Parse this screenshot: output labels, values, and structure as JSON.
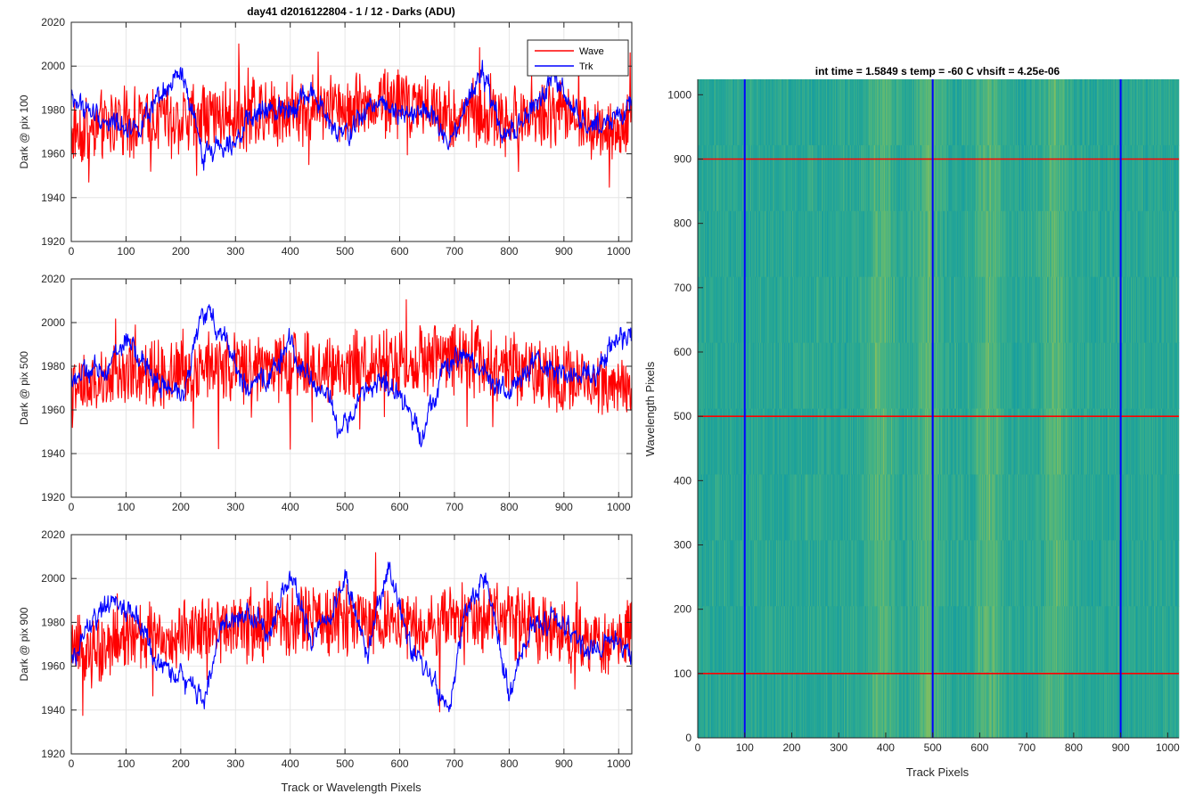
{
  "figure": {
    "suptitle": "day41 d2016122804 - 1 / 12 - Darks (ADU)",
    "shared_xlabel": "Track or Wavelength Pixels"
  },
  "legend": {
    "position": "top-right",
    "entries": [
      {
        "name": "Wave",
        "color": "#ff0000"
      },
      {
        "name": "Trk",
        "color": "#0000ff"
      }
    ]
  },
  "chart_data": [
    {
      "type": "line",
      "ylabel": "Dark @ pix 100",
      "xlabel": "",
      "xlim": [
        0,
        1024
      ],
      "ylim": [
        1920,
        2020
      ],
      "xticks": [
        0,
        100,
        200,
        300,
        400,
        500,
        600,
        700,
        800,
        900,
        1000
      ],
      "yticks": [
        1920,
        1940,
        1960,
        1980,
        2000,
        2020
      ],
      "grid": true,
      "series": [
        {
          "name": "Wave",
          "color": "#ff0000",
          "center": 1977,
          "x": [
            0,
            100,
            200,
            300,
            400,
            500,
            600,
            700,
            800,
            900,
            1000,
            1024
          ],
          "y": [
            1970,
            1975,
            1976,
            1978,
            1980,
            1982,
            1984,
            1978,
            1976,
            1978,
            1970,
            1975
          ]
        },
        {
          "name": "Trk",
          "color": "#0000ff",
          "x": [
            0,
            60,
            120,
            150,
            200,
            240,
            300,
            340,
            400,
            440,
            480,
            500,
            560,
            600,
            660,
            690,
            750,
            790,
            830,
            880,
            940,
            1024
          ],
          "y": [
            1985,
            1975,
            1972,
            1980,
            1997,
            1960,
            1968,
            1978,
            1982,
            1988,
            1970,
            1968,
            1985,
            1980,
            1978,
            1962,
            1998,
            1966,
            1976,
            1994,
            1972,
            1980
          ]
        }
      ]
    },
    {
      "type": "line",
      "ylabel": "Dark @ pix 500",
      "xlabel": "",
      "xlim": [
        0,
        1024
      ],
      "ylim": [
        1920,
        2020
      ],
      "xticks": [
        0,
        100,
        200,
        300,
        400,
        500,
        600,
        700,
        800,
        900,
        1000
      ],
      "yticks": [
        1920,
        1940,
        1960,
        1980,
        2000,
        2020
      ],
      "grid": true,
      "series": [
        {
          "name": "Wave",
          "color": "#ff0000",
          "x": [
            0,
            100,
            200,
            300,
            400,
            500,
            600,
            700,
            800,
            900,
            1000,
            1024
          ],
          "y": [
            1968,
            1975,
            1978,
            1980,
            1980,
            1980,
            1982,
            1985,
            1980,
            1975,
            1972,
            1972
          ]
        },
        {
          "name": "Trk",
          "color": "#0000ff",
          "x": [
            0,
            60,
            100,
            150,
            200,
            240,
            280,
            320,
            360,
            400,
            440,
            470,
            490,
            520,
            560,
            600,
            640,
            680,
            720,
            760,
            800,
            850,
            900,
            960,
            1000,
            1024
          ],
          "y": [
            1975,
            1978,
            1992,
            1975,
            1965,
            2005,
            1995,
            1968,
            1975,
            1990,
            1972,
            1968,
            1948,
            1962,
            1975,
            1965,
            1950,
            1978,
            1985,
            1975,
            1968,
            1982,
            1975,
            1978,
            1995,
            1990
          ]
        }
      ]
    },
    {
      "type": "line",
      "ylabel": "Dark @ pix 900",
      "xlabel": "Track or Wavelength Pixels",
      "xlim": [
        0,
        1024
      ],
      "ylim": [
        1920,
        2020
      ],
      "xticks": [
        0,
        100,
        200,
        300,
        400,
        500,
        600,
        700,
        800,
        900,
        1000
      ],
      "yticks": [
        1920,
        1940,
        1960,
        1980,
        2000,
        2020
      ],
      "grid": true,
      "series": [
        {
          "name": "Wave",
          "color": "#ff0000",
          "x": [
            0,
            100,
            200,
            300,
            400,
            500,
            600,
            700,
            800,
            900,
            1000,
            1024
          ],
          "y": [
            1965,
            1972,
            1975,
            1978,
            1980,
            1982,
            1980,
            1982,
            1980,
            1975,
            1970,
            1978
          ]
        },
        {
          "name": "Trk",
          "color": "#0000ff",
          "x": [
            0,
            30,
            80,
            120,
            160,
            200,
            240,
            280,
            320,
            360,
            400,
            440,
            480,
            500,
            540,
            580,
            620,
            660,
            690,
            720,
            760,
            800,
            840,
            880,
            940,
            1000,
            1024
          ],
          "y": [
            1960,
            1978,
            1990,
            1982,
            1960,
            1955,
            1945,
            1980,
            1985,
            1975,
            2002,
            1972,
            1988,
            2000,
            1965,
            2005,
            1968,
            1955,
            1938,
            1985,
            2000,
            1945,
            1978,
            1982,
            1968,
            1972,
            1965
          ]
        }
      ]
    },
    {
      "type": "heatmap",
      "title": "int time = 1.5849 s    temp = -60 C    vhsift = 4.25e-06",
      "xlabel": "Track Pixels",
      "ylabel": "Wavelength Pixels",
      "xlim": [
        0,
        1024
      ],
      "ylim": [
        0,
        1024
      ],
      "xticks": [
        0,
        100,
        200,
        300,
        400,
        500,
        600,
        700,
        800,
        900,
        1000
      ],
      "yticks": [
        0,
        100,
        200,
        300,
        400,
        500,
        600,
        700,
        800,
        900,
        1000
      ],
      "colormap": "parula",
      "colors": {
        "low": "#1a9ea0",
        "mid": "#3fb38f",
        "high": "#a8c25a"
      },
      "bright_bands_x": [
        390,
        490,
        620,
        760
      ],
      "horizontal_lines": {
        "y": [
          100,
          500,
          900
        ],
        "color": "#ff0000"
      },
      "vertical_lines": {
        "x": [
          100,
          500,
          900
        ],
        "color": "#0000ff"
      }
    }
  ]
}
